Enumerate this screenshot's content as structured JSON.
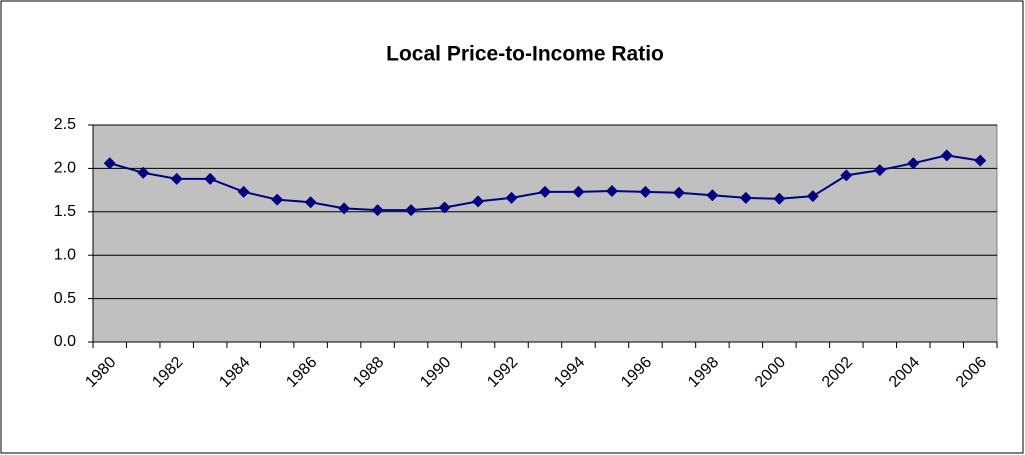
{
  "chart_data": {
    "type": "line",
    "title": "Local Price-to-Income Ratio",
    "categories": [
      "1980",
      null,
      "1982",
      null,
      "1984",
      null,
      "1986",
      null,
      "1988",
      null,
      "1990",
      null,
      "1992",
      null,
      "1994",
      null,
      "1996",
      null,
      "1998",
      null,
      "2000",
      null,
      "2002",
      null,
      "2004",
      null,
      "2006"
    ],
    "values": [
      2.06,
      1.95,
      1.88,
      1.88,
      1.73,
      1.64,
      1.61,
      1.54,
      1.52,
      1.52,
      1.55,
      1.62,
      1.66,
      1.73,
      1.73,
      1.74,
      1.73,
      1.72,
      1.69,
      1.66,
      1.65,
      1.68,
      1.92,
      1.98,
      2.06,
      2.15,
      2.09
    ],
    "color": "#000080",
    "ylim": [
      0,
      2.5
    ],
    "yticks": [
      {
        "value": 0,
        "label": "0.0"
      },
      0.5,
      {
        "value": 1,
        "label": "1.0"
      },
      1.5,
      {
        "value": 2,
        "label": "2.0"
      },
      2.5
    ],
    "grid": true
  }
}
